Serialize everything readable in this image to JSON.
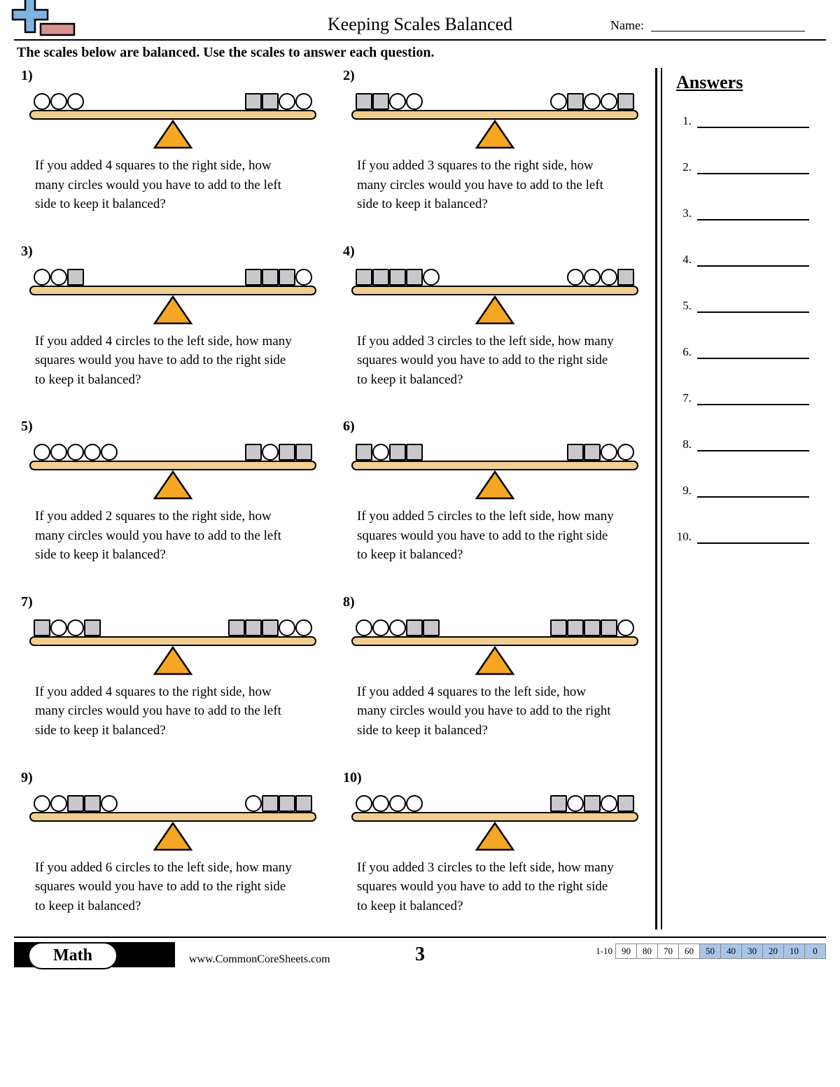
{
  "header": {
    "title": "Keeping Scales Balanced",
    "name_label": "Name:"
  },
  "instructions": "The scales below are balanced. Use the scales to answer each question.",
  "colors": {
    "beam": "#f2ce8e",
    "fulcrum": "#f5a623",
    "square_fill": "#c8c8cc",
    "circle_fill": "#ffffff",
    "score_shade": "#a8c4e8"
  },
  "problems": [
    {
      "n": "1)",
      "left": [
        "circle",
        "circle",
        "circle"
      ],
      "right": [
        "square",
        "square",
        "circle",
        "circle"
      ],
      "text": "If you added 4 squares to the right side, how many circles would you have to add to the left side to keep it balanced?"
    },
    {
      "n": "2)",
      "left": [
        "square",
        "square",
        "circle",
        "circle"
      ],
      "right": [
        "circle",
        "square",
        "circle",
        "circle",
        "square"
      ],
      "text": "If you added 3 squares to the right side, how many circles would you have to add to the left side to keep it balanced?"
    },
    {
      "n": "3)",
      "left": [
        "circle",
        "circle",
        "square"
      ],
      "right": [
        "square",
        "square",
        "square",
        "circle"
      ],
      "text": "If you added 4 circles to the left side, how many squares would you have to add to the right side to keep it balanced?"
    },
    {
      "n": "4)",
      "left": [
        "square",
        "square",
        "square",
        "square",
        "circle"
      ],
      "right": [
        "circle",
        "circle",
        "circle",
        "square"
      ],
      "text": "If you added 3 circles to the left side, how many squares would you have to add to the right side to keep it balanced?"
    },
    {
      "n": "5)",
      "left": [
        "circle",
        "circle",
        "circle",
        "circle",
        "circle"
      ],
      "right": [
        "square",
        "circle",
        "square",
        "square"
      ],
      "text": "If you added 2 squares to the right side, how many circles would you have to add to the left side to keep it balanced?"
    },
    {
      "n": "6)",
      "left": [
        "square",
        "circle",
        "square",
        "square"
      ],
      "right": [
        "square",
        "square",
        "circle",
        "circle"
      ],
      "text": "If you added 5 circles to the left side, how many squares would you have to add to the right side to keep it balanced?"
    },
    {
      "n": "7)",
      "left": [
        "square",
        "circle",
        "circle",
        "square"
      ],
      "right": [
        "square",
        "square",
        "square",
        "circle",
        "circle"
      ],
      "text": "If you added 4 squares to the right side, how many circles would you have to add to the left side to keep it balanced?"
    },
    {
      "n": "8)",
      "left": [
        "circle",
        "circle",
        "circle",
        "square",
        "square"
      ],
      "right": [
        "square",
        "square",
        "square",
        "square",
        "circle"
      ],
      "text": "If you added 4 squares to the left side, how many circles would you have to add to the right side to keep it balanced?"
    },
    {
      "n": "9)",
      "left": [
        "circle",
        "circle",
        "square",
        "square",
        "circle"
      ],
      "right": [
        "circle",
        "square",
        "square",
        "square"
      ],
      "text": "If you added 6 circles to the left side, how many squares would you have to add to the right side to keep it balanced?"
    },
    {
      "n": "10)",
      "left": [
        "circle",
        "circle",
        "circle",
        "circle"
      ],
      "right": [
        "square",
        "circle",
        "square",
        "circle",
        "square"
      ],
      "text": "If you added 3 circles to the left side, how many squares would you have to add to the right side to keep it balanced?"
    }
  ],
  "answers": {
    "title": "Answers",
    "count": 10
  },
  "footer": {
    "subject": "Math",
    "website": "www.CommonCoreSheets.com",
    "page": "3",
    "score_label": "1-10",
    "scores": [
      "90",
      "80",
      "70",
      "60",
      "50",
      "40",
      "30",
      "20",
      "10",
      "0"
    ],
    "shaded_from_index": 4
  }
}
